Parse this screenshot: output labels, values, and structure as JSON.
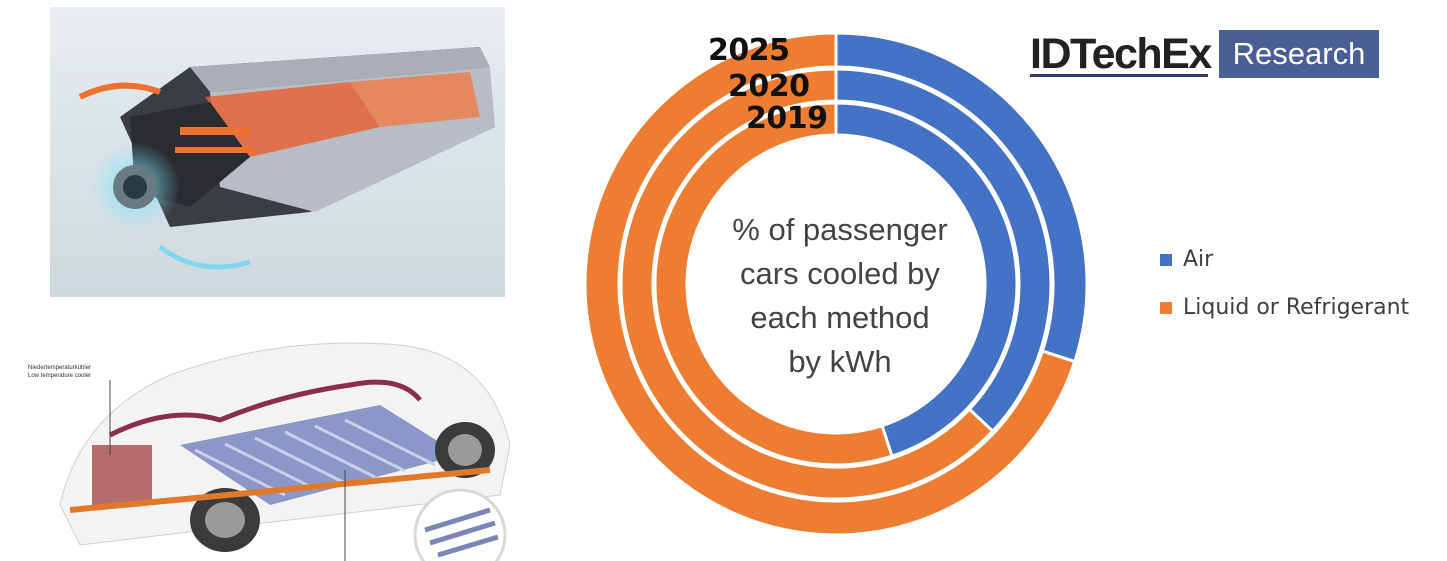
{
  "logo": {
    "brand": "IDTechEx",
    "section": "Research"
  },
  "photos": {
    "battery": {
      "image": "battery-pack-cutaway"
    },
    "car": {
      "image": "ev-chassis-cooling-cutaway",
      "callout_de": "Niedertemperaturkühler",
      "callout_en": "Low temperature cooler"
    }
  },
  "chart_data": {
    "type": "donut",
    "center_title": [
      "% of passenger",
      "cars cooled by",
      "each method",
      "by kWh"
    ],
    "rings": [
      {
        "label": "2025",
        "values": [
          30,
          70
        ]
      },
      {
        "label": "2020",
        "values": [
          37,
          63
        ]
      },
      {
        "label": "2019",
        "values": [
          45,
          55
        ]
      }
    ],
    "categories": [
      "Air",
      "Liquid or Refrigerant"
    ],
    "colors": [
      "#4472c4",
      "#ed7d31"
    ],
    "legend_position": "right"
  }
}
